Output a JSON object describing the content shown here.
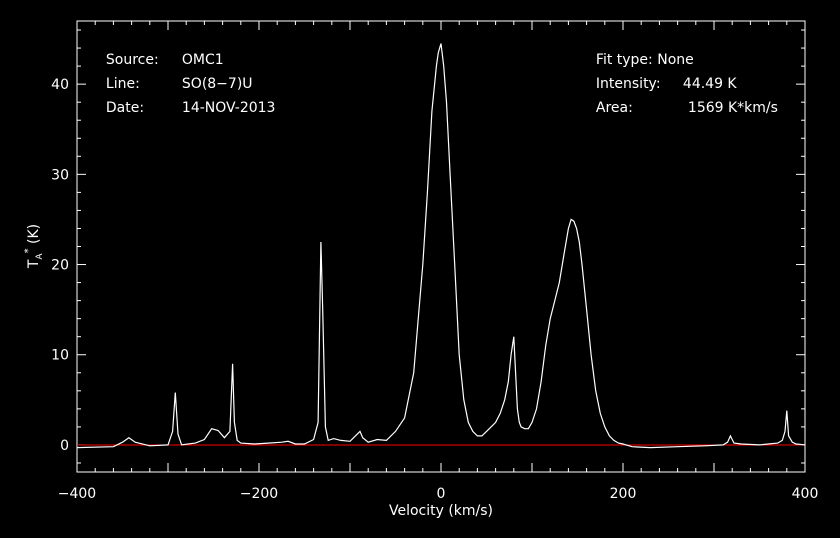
{
  "header_left": {
    "source_label": "Source:",
    "source_value": "OMC1",
    "line_label": "Line:",
    "line_value": "SO(8−7)U",
    "date_label": "Date:",
    "date_value": "14-NOV-2013"
  },
  "header_right": {
    "fit_label": "Fit type:",
    "fit_value": "None",
    "intensity_label": "Intensity:",
    "intensity_value": "44.49 K",
    "area_label": "Area:",
    "area_value": "1569 K*km/s"
  },
  "colors": {
    "background": "#000000",
    "axes": "#ffffff",
    "spectrum": "#ffffff",
    "baseline": "#ff0000"
  },
  "chart_data": {
    "type": "line",
    "xlabel": "Velocity (km/s)",
    "ylabel": "T_A* (K)",
    "xlim": [
      -400,
      400
    ],
    "ylim": [
      -3,
      47
    ],
    "xticks": [
      -400,
      -200,
      0,
      200,
      400
    ],
    "yticks": [
      0,
      10,
      20,
      30,
      40
    ],
    "baseline_y": 0,
    "series": [
      {
        "x": [
          -400,
          -360,
          -350,
          -343,
          -336,
          -320,
          -300,
          -295,
          -292,
          -289,
          -285,
          -270,
          -260,
          -252,
          -245,
          -238,
          -232,
          -229,
          -227,
          -224,
          -220,
          -205,
          -190,
          -175,
          -168,
          -160,
          -150,
          -140,
          -135,
          -132,
          -130,
          -127,
          -124,
          -118,
          -110,
          -100,
          -92,
          -89,
          -86,
          -80,
          -70,
          -60,
          -50,
          -40,
          -30,
          -20,
          -15,
          -10,
          -5,
          -3,
          0,
          3,
          6,
          10,
          15,
          20,
          25,
          30,
          35,
          40,
          45,
          50,
          55,
          60,
          65,
          70,
          74,
          77,
          80,
          82,
          84,
          86,
          88,
          92,
          96,
          100,
          105,
          110,
          115,
          120,
          125,
          130,
          135,
          140,
          143,
          146,
          149,
          152,
          155,
          160,
          165,
          170,
          175,
          180,
          185,
          190,
          195,
          200,
          210,
          230,
          260,
          290,
          310,
          315,
          318,
          322,
          330,
          350,
          370,
          375,
          378,
          380,
          382,
          386,
          390,
          400
        ],
        "y": [
          -0.3,
          -0.2,
          0.3,
          0.8,
          0.3,
          -0.1,
          0.0,
          1.5,
          5.8,
          1.2,
          0.0,
          0.2,
          0.6,
          1.8,
          1.6,
          0.8,
          1.5,
          9.0,
          2.5,
          0.5,
          0.2,
          0.1,
          0.2,
          0.3,
          0.4,
          0.1,
          0.1,
          0.6,
          2.5,
          22.5,
          15.0,
          2.0,
          0.5,
          0.7,
          0.5,
          0.4,
          1.2,
          1.5,
          0.8,
          0.3,
          0.6,
          0.5,
          1.5,
          3.0,
          8.0,
          20.0,
          28.0,
          37.0,
          42.0,
          43.5,
          44.5,
          42.0,
          38.0,
          30.0,
          20.0,
          10.0,
          5.0,
          2.5,
          1.5,
          1.0,
          1.0,
          1.5,
          2.0,
          2.5,
          3.5,
          5.0,
          7.0,
          10.0,
          12.0,
          8.0,
          4.0,
          2.5,
          2.0,
          1.8,
          1.8,
          2.5,
          4.0,
          7.0,
          11.0,
          14.0,
          16.0,
          18.0,
          21.0,
          24.0,
          25.0,
          24.8,
          24.0,
          22.5,
          20.0,
          15.0,
          10.0,
          6.0,
          3.5,
          2.0,
          1.0,
          0.5,
          0.2,
          0.1,
          -0.2,
          -0.3,
          -0.2,
          -0.1,
          0.0,
          0.3,
          1.0,
          0.2,
          0.1,
          0.0,
          0.2,
          0.5,
          1.5,
          3.8,
          1.0,
          0.3,
          0.1,
          0.0
        ]
      }
    ]
  }
}
